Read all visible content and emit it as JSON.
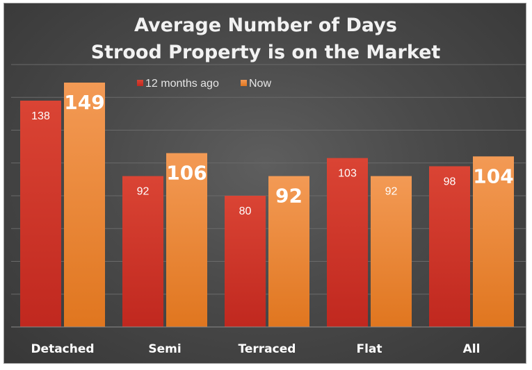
{
  "chart_data": {
    "type": "bar",
    "title": "Average Number of Days",
    "subtitle": "Strood Property is on the Market",
    "categories": [
      "Detached",
      "Semi",
      "Terraced",
      "Flat",
      "All"
    ],
    "series": [
      {
        "name": "12 months ago",
        "values": [
          138,
          92,
          80,
          103,
          98
        ],
        "color": "#d63a2e"
      },
      {
        "name": "Now",
        "values": [
          149,
          106,
          92,
          92,
          104
        ],
        "color": "#f08a3c"
      }
    ],
    "xlabel": "",
    "ylabel": "",
    "ylim": [
      0,
      160
    ],
    "grid": true,
    "legend": "top-center",
    "colors": {
      "background": "#4a4a4a",
      "text": "#ffffff"
    }
  }
}
